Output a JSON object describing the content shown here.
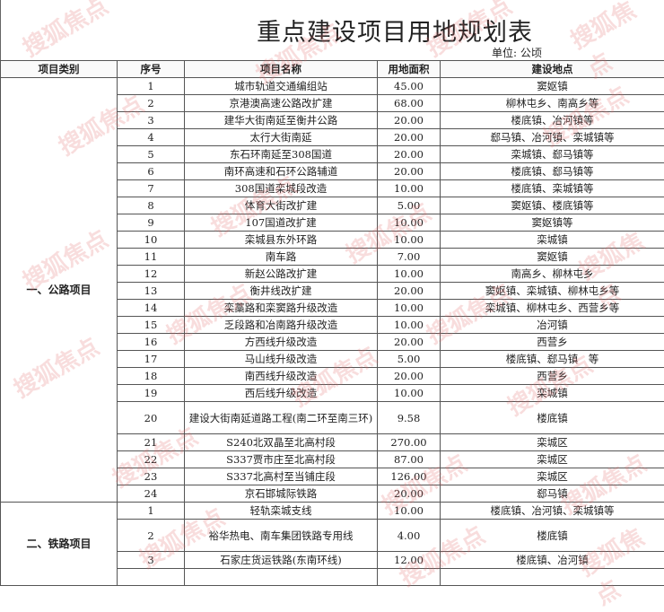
{
  "title": "重点建设项目用地规划表",
  "unit": "单位: 公顷",
  "watermark": "搜狐焦点",
  "watermark_color": "#e46a6a",
  "headers": [
    "项目类别",
    "序号",
    "项目名称",
    "用地面积",
    "建设地点"
  ],
  "groups": [
    {
      "category": "一、公路项目",
      "rows": [
        {
          "no": "1",
          "name": "城市轨道交通编组站",
          "area": "45.00",
          "location": "窦妪镇"
        },
        {
          "no": "2",
          "name": "京港澳高速公路改扩建",
          "area": "68.00",
          "location": "柳林屯乡、南高乡等"
        },
        {
          "no": "3",
          "name": "建华大街南延至衡井公路",
          "area": "20.00",
          "location": "楼底镇、冶河镇等"
        },
        {
          "no": "4",
          "name": "太行大街南延",
          "area": "20.00",
          "location": "郄马镇、冶河镇、栾城镇等"
        },
        {
          "no": "5",
          "name": "东石环南延至308国道",
          "area": "20.00",
          "location": "栾城镇、郄马镇等"
        },
        {
          "no": "6",
          "name": "南环高速和石环公路辅道",
          "area": "20.00",
          "location": "楼底镇、郄马镇等"
        },
        {
          "no": "7",
          "name": "308国道栾城段改造",
          "area": "10.00",
          "location": "楼底镇、栾城镇等"
        },
        {
          "no": "8",
          "name": "体育大街改扩建",
          "area": "5.00",
          "location": "窦妪镇、楼底镇等"
        },
        {
          "no": "9",
          "name": "107国道改扩建",
          "area": "10.00",
          "location": "窦妪镇等"
        },
        {
          "no": "10",
          "name": "栾城县东外环路",
          "area": "10.00",
          "location": "栾城镇"
        },
        {
          "no": "11",
          "name": "南车路",
          "area": "7.00",
          "location": "窦妪镇"
        },
        {
          "no": "12",
          "name": "新赵公路改扩建",
          "area": "10.00",
          "location": "南高乡、柳林屯乡"
        },
        {
          "no": "13",
          "name": "衡井线改扩建",
          "area": "20.00",
          "location": "窦妪镇、栾城镇、柳林屯乡等"
        },
        {
          "no": "14",
          "name": "栾藁路和栾窦路升级改造",
          "area": "10.00",
          "location": "栾城镇、柳林屯乡、西营乡等"
        },
        {
          "no": "15",
          "name": "乏段路和冶南路升级改造",
          "area": "10.00",
          "location": "冶河镇"
        },
        {
          "no": "16",
          "name": "方西线升级改造",
          "area": "20.00",
          "location": "西营乡"
        },
        {
          "no": "17",
          "name": "马山线升级改造",
          "area": "5.00",
          "location": "楼底镇、郄马镇　等"
        },
        {
          "no": "18",
          "name": "南西线升级改造",
          "area": "20.00",
          "location": "西营乡"
        },
        {
          "no": "19",
          "name": "西后线升级改造",
          "area": "10.00",
          "location": "栾城镇"
        },
        {
          "no": "20",
          "name": "建设大街南延道路工程(南二环至南三环)",
          "area": "9.58",
          "location": "楼底镇",
          "tall": true
        },
        {
          "no": "21",
          "name": "S240北双晶至北高村段",
          "area": "270.00",
          "location": "栾城区"
        },
        {
          "no": "22",
          "name": "S337贾市庄至北高村段",
          "area": "87.00",
          "location": "栾城区"
        },
        {
          "no": "23",
          "name": "S337北高村至当铺庄段",
          "area": "126.00",
          "location": "栾城区"
        },
        {
          "no": "24",
          "name": "京石邯城际铁路",
          "area": "20.00",
          "location": "郄马镇"
        }
      ]
    },
    {
      "category": "二、铁路项目",
      "rows": [
        {
          "no": "1",
          "name": "轻轨栾城支线",
          "area": "10.00",
          "location": "楼底镇、冶河镇、栾城镇等"
        },
        {
          "no": "2",
          "name": "裕华热电、南车集团铁路专用线",
          "area": "4.00",
          "location": "楼底镇",
          "tall": true
        },
        {
          "no": "3",
          "name": "石家庄货运铁路(东南环线)",
          "area": "12.00",
          "location": "楼底镇、冶河镇"
        }
      ]
    }
  ]
}
